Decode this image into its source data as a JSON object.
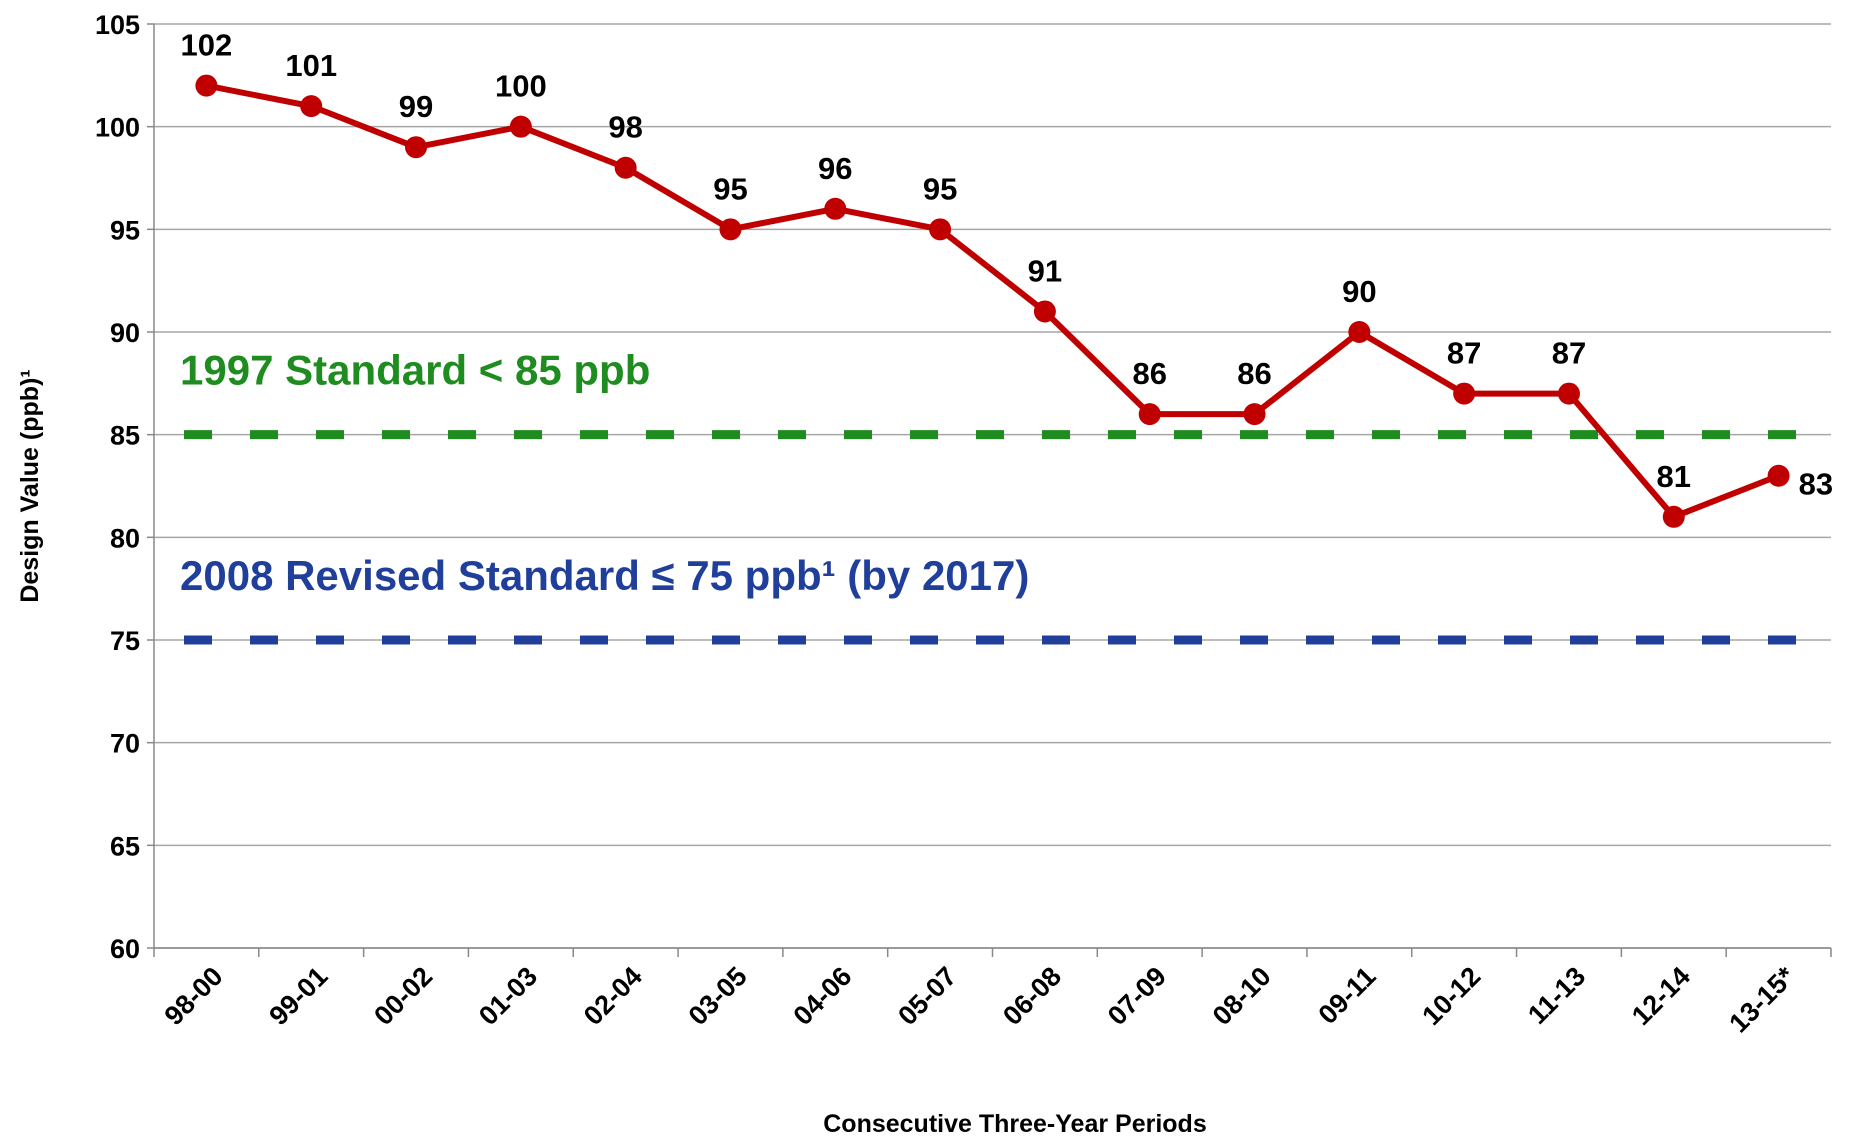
{
  "chart_data": {
    "type": "line",
    "x_label": "Consecutive Three-Year Periods",
    "y_label": "Design Value (ppb)¹",
    "categories": [
      "98-00",
      "99-01",
      "00-02",
      "01-03",
      "02-04",
      "03-05",
      "04-06",
      "05-07",
      "06-08",
      "07-09",
      "08-10",
      "09-11",
      "10-12",
      "11-13",
      "12-14",
      "13-15*"
    ],
    "series": [
      {
        "name": "Design Value",
        "color": "#c00000",
        "values": [
          102,
          101,
          99,
          100,
          98,
          95,
          96,
          95,
          91,
          86,
          86,
          90,
          87,
          87,
          81,
          83
        ]
      }
    ],
    "ylim": [
      60,
      105
    ],
    "yticks": [
      60,
      65,
      70,
      75,
      80,
      85,
      90,
      95,
      100,
      105
    ],
    "grid": true,
    "reference_lines": [
      {
        "value": 85,
        "label": "1997 Standard < 85 ppb",
        "color": "#1e8c1e"
      },
      {
        "value": 75,
        "label": "2008 Revised Standard ≤ 75 ppb¹ (by 2017)",
        "color": "#1f3f9a"
      }
    ]
  }
}
